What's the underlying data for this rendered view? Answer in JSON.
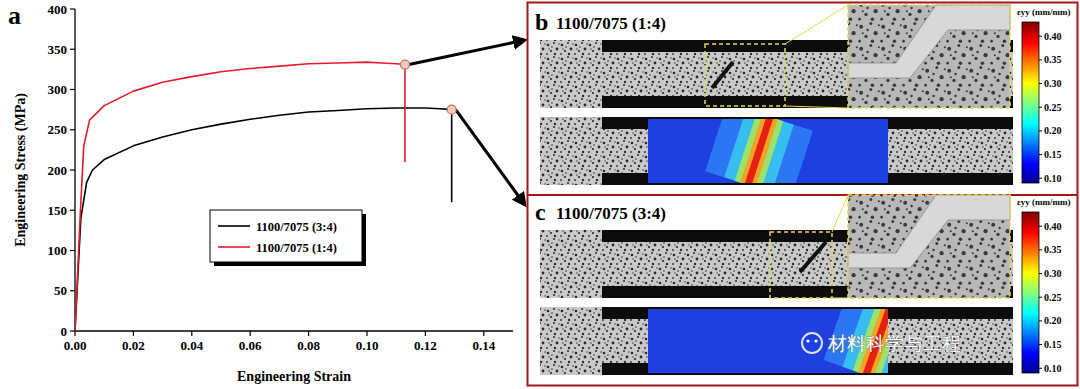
{
  "chart_data": {
    "type": "line",
    "label": "a",
    "xlabel": "Engineering Strain",
    "ylabel": "Engineering Stress (MPa)",
    "xlim": [
      0,
      0.15
    ],
    "xticks": [
      {
        "value": 0,
        "label": "0.00"
      },
      0.02,
      0.04,
      0.06,
      0.08,
      {
        "value": 0.1,
        "label": "0.10"
      },
      0.12,
      0.14
    ],
    "ylim": [
      0,
      400
    ],
    "yticks": [
      0,
      50,
      100,
      150,
      200,
      250,
      300,
      350,
      400
    ],
    "grid": false,
    "legend": "center",
    "series": [
      {
        "name": "1100/7075 (3:4)",
        "color": "#000000",
        "x": [
          0,
          0.002,
          0.004,
          0.006,
          0.01,
          0.02,
          0.03,
          0.04,
          0.05,
          0.06,
          0.07,
          0.08,
          0.09,
          0.1,
          0.11,
          0.12,
          0.125,
          0.129,
          0.129
        ],
        "values": [
          0,
          140,
          185,
          200,
          213,
          230,
          241,
          250,
          257,
          263,
          268,
          272,
          274,
          276,
          277,
          277,
          276,
          275,
          160
        ]
      },
      {
        "name": "1100/7075 (1:4)",
        "color": "#e8192c",
        "x": [
          0,
          0.002,
          0.003,
          0.005,
          0.01,
          0.02,
          0.03,
          0.04,
          0.05,
          0.06,
          0.07,
          0.08,
          0.09,
          0.1,
          0.105,
          0.11,
          0.113,
          0.113
        ],
        "values": [
          0,
          160,
          230,
          262,
          280,
          298,
          309,
          316,
          322,
          326,
          329,
          332,
          333,
          334,
          333,
          332,
          331,
          210
        ]
      }
    ]
  },
  "panels": [
    {
      "label": "b",
      "title": "1100/7075 (1:4)",
      "colorbar": {
        "label": "εyy (mm/mm)",
        "range": [
          0.09,
          0.43
        ],
        "ticks": [
          {
            "value": 0.4,
            "label": "0.40"
          },
          0.35,
          {
            "value": 0.3,
            "label": "0.30"
          },
          0.25,
          {
            "value": 0.2,
            "label": "0.20"
          },
          0.15,
          {
            "value": 0.1,
            "label": "0.10"
          }
        ]
      }
    },
    {
      "label": "c",
      "title": "1100/7075 (3:4)",
      "colorbar": {
        "label": "εyy (mm/mm)",
        "range": [
          0.09,
          0.43
        ],
        "ticks": [
          {
            "value": 0.4,
            "label": "0.40"
          },
          0.35,
          {
            "value": 0.3,
            "label": "0.30"
          },
          0.25,
          {
            "value": 0.2,
            "label": "0.20"
          },
          0.15,
          {
            "value": 0.1,
            "label": "0.10"
          }
        ]
      }
    }
  ],
  "watermark": "材料科学与工程"
}
